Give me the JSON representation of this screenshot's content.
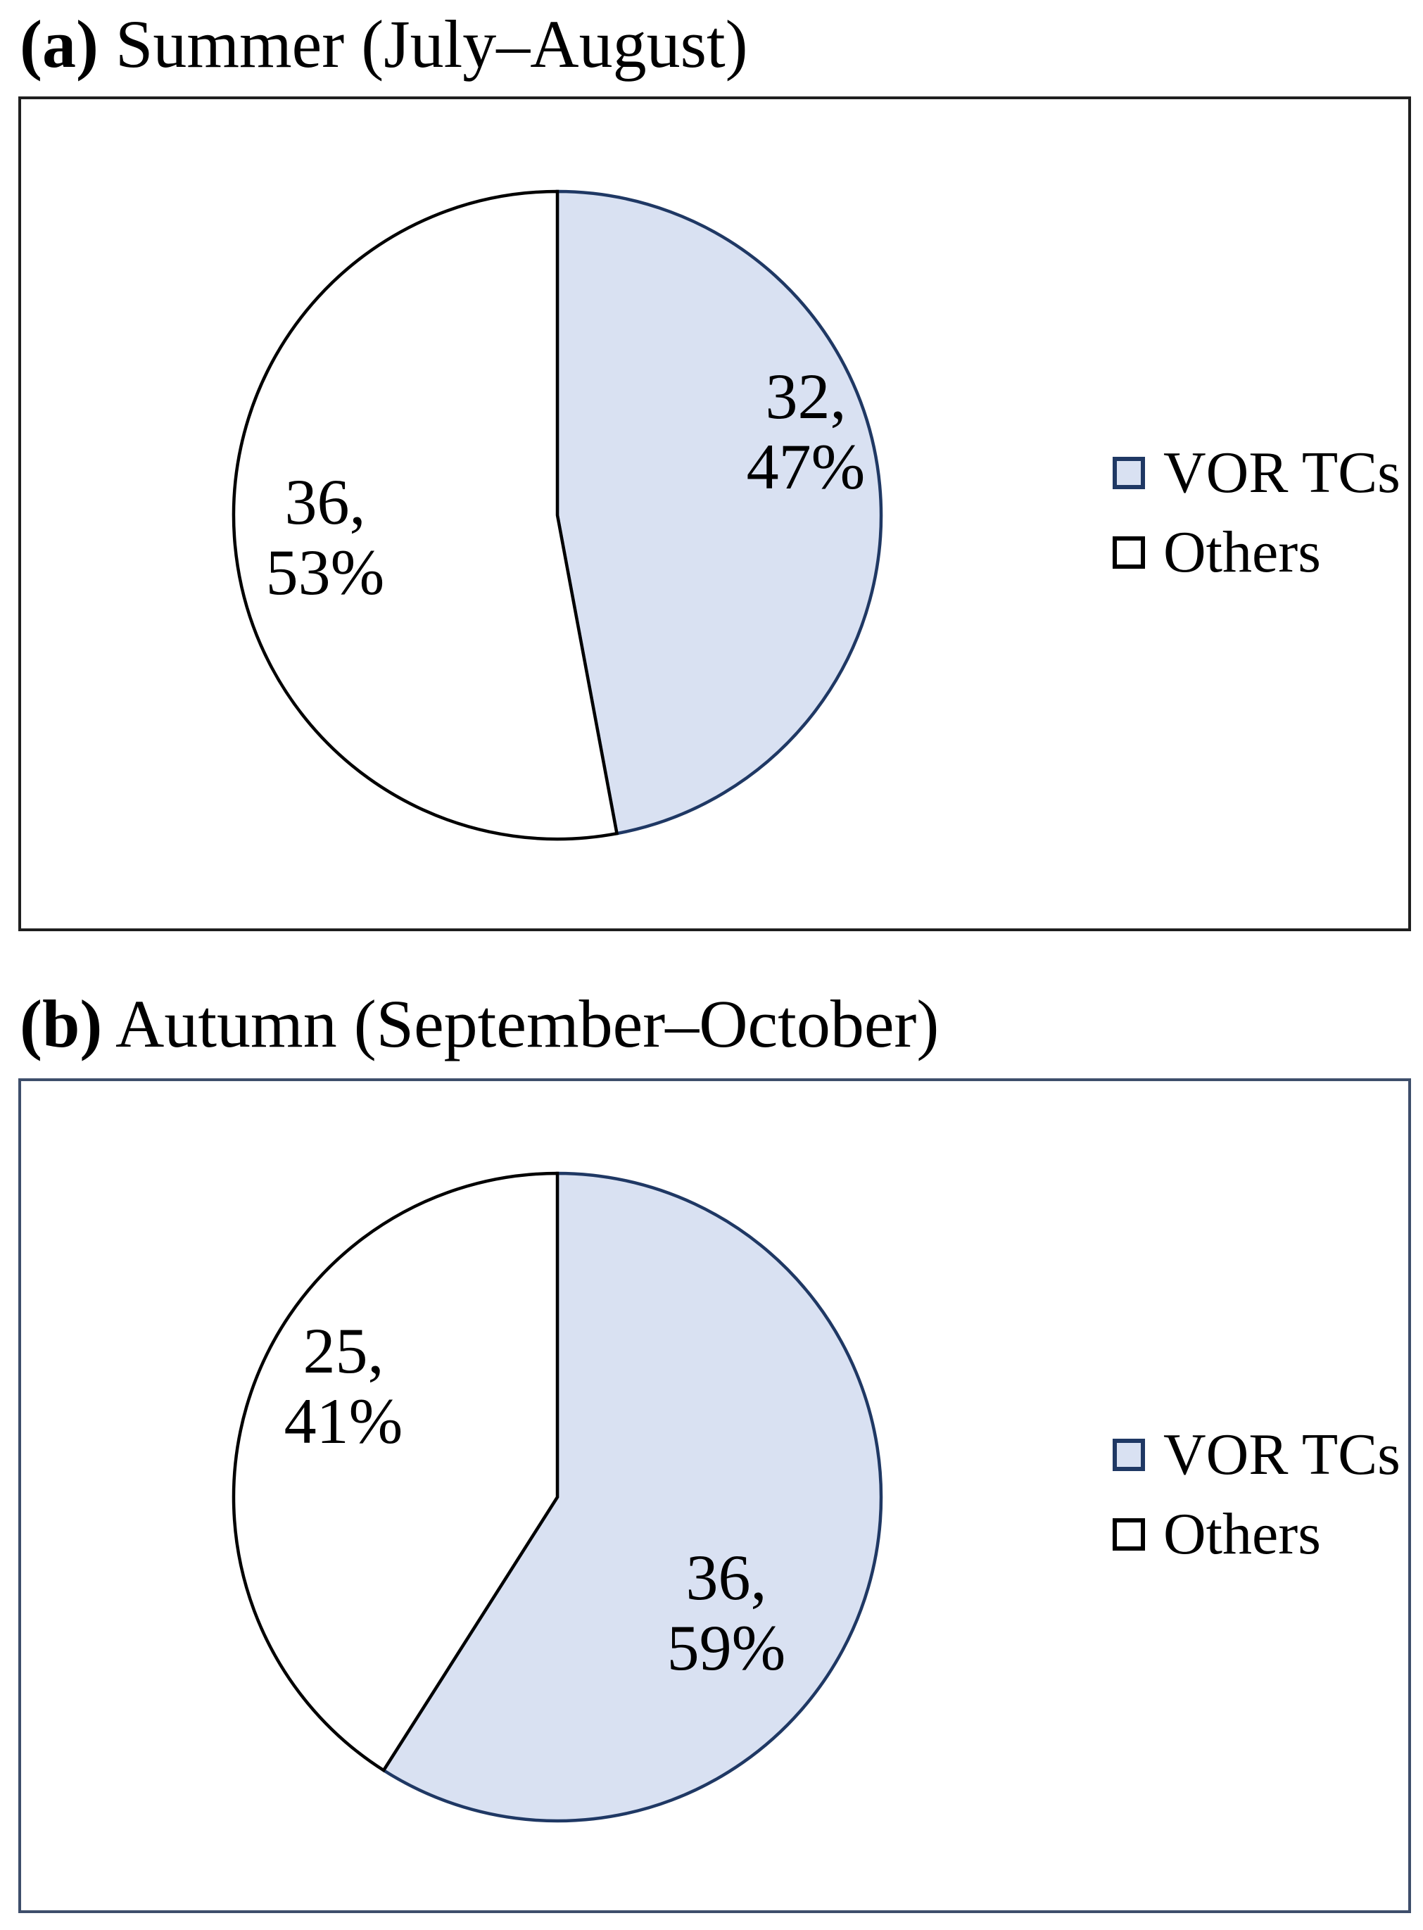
{
  "figure_colors": {
    "vor_fill": "#D9E1F2",
    "vor_stroke": "#1F3864",
    "others_fill": "#FFFFFF",
    "others_stroke": "#000000",
    "panel_a_border": "#1F1F1F",
    "panel_b_border": "#3E4E6B"
  },
  "panels": [
    {
      "id": "a",
      "title_bold": "(a)",
      "title_rest": " Summer (July–August)",
      "legend": [
        {
          "label": "VOR TCs"
        },
        {
          "label": "Others"
        }
      ]
    },
    {
      "id": "b",
      "title_bold": "(b)",
      "title_rest": " Autumn (September–October)",
      "legend": [
        {
          "label": "VOR TCs"
        },
        {
          "label": "Others"
        }
      ]
    }
  ],
  "chart_data": [
    {
      "type": "pie",
      "panel": "a",
      "title": "(a) Summer (July–August)",
      "categories": [
        "VOR TCs",
        "Others"
      ],
      "values": [
        32,
        36
      ],
      "percents": [
        47,
        53
      ],
      "start_angle_deg": 0,
      "direction": "clockwise",
      "legend_position": "right",
      "label_lines": [
        [
          "32,",
          "47%"
        ],
        [
          "36,",
          "53%"
        ]
      ],
      "colors": {
        "VOR TCs": {
          "fill": "#D9E1F2",
          "stroke": "#1F3864"
        },
        "Others": {
          "fill": "#FFFFFF",
          "stroke": "#000000"
        }
      }
    },
    {
      "type": "pie",
      "panel": "b",
      "title": "(b) Autumn (September–October)",
      "categories": [
        "VOR TCs",
        "Others"
      ],
      "values": [
        36,
        25
      ],
      "percents": [
        59,
        41
      ],
      "start_angle_deg": 0,
      "direction": "clockwise",
      "legend_position": "right",
      "label_lines": [
        [
          "36,",
          "59%"
        ],
        [
          "25,",
          "41%"
        ]
      ],
      "colors": {
        "VOR TCs": {
          "fill": "#D9E1F2",
          "stroke": "#1F3864"
        },
        "Others": {
          "fill": "#FFFFFF",
          "stroke": "#000000"
        }
      }
    }
  ]
}
